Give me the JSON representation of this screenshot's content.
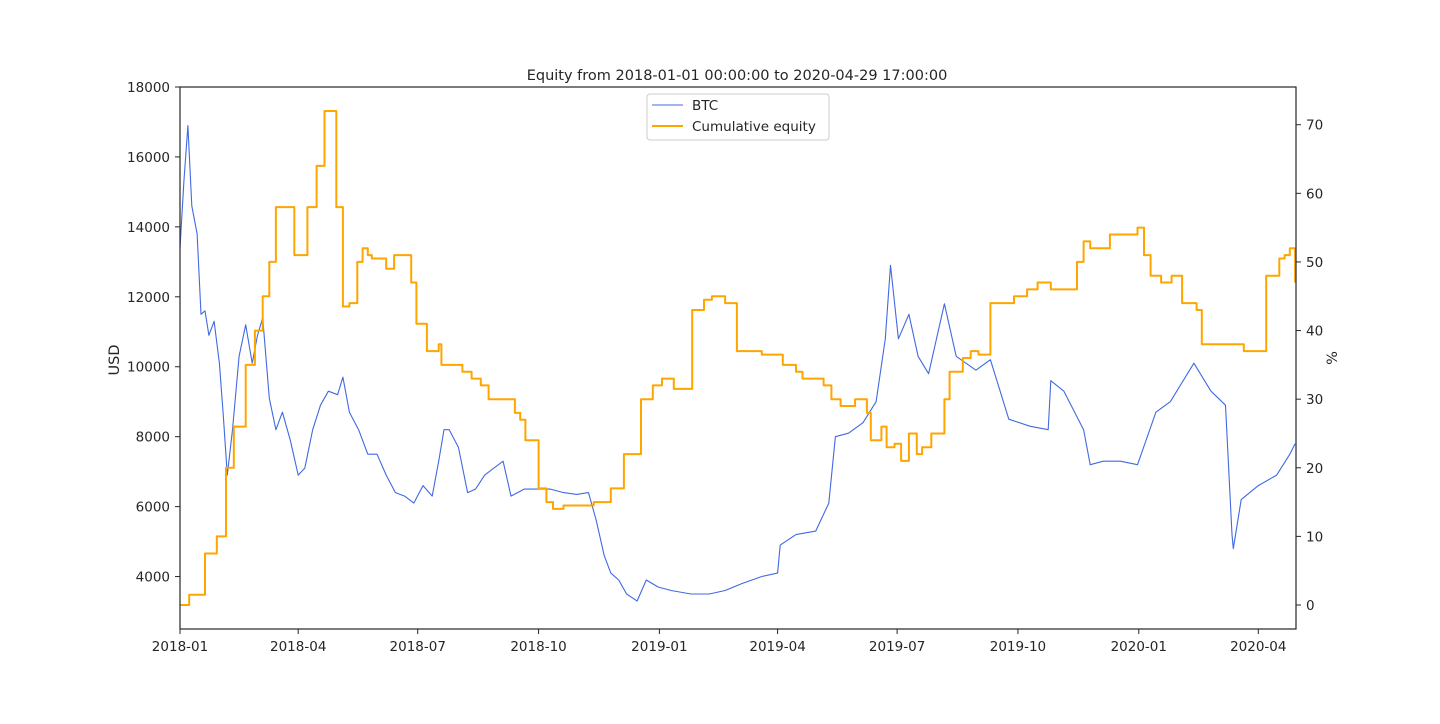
{
  "chart_data": {
    "type": "line",
    "title": "Equity from 2018-01-01 00:00:00 to 2020-04-29 17:00:00",
    "xlabel": "",
    "ylabel": "USD",
    "y2label": "%",
    "xlim": [
      "2018-01-01",
      "2020-04-29"
    ],
    "ylim": [
      2500,
      18000
    ],
    "y2lim": [
      -3.5,
      75.5
    ],
    "x_ticks": [
      "2018-01",
      "2018-04",
      "2018-07",
      "2018-10",
      "2019-01",
      "2019-04",
      "2019-07",
      "2019-10",
      "2020-01",
      "2020-04"
    ],
    "y_ticks": [
      4000,
      6000,
      8000,
      10000,
      12000,
      14000,
      16000,
      18000
    ],
    "y2_ticks": [
      0,
      10,
      20,
      30,
      40,
      50,
      60,
      70
    ],
    "grid": false,
    "legend": {
      "placement": "top-center",
      "entries": [
        "BTC",
        "Cumulative equity"
      ]
    },
    "colors": {
      "btc": "#4169E1",
      "equity": "#FFA500",
      "axis": "#262626"
    },
    "series": [
      {
        "name": "BTC",
        "axis": "left",
        "x": [
          "2018-01-01",
          "2018-01-04",
          "2018-01-07",
          "2018-01-10",
          "2018-01-14",
          "2018-01-17",
          "2018-01-20",
          "2018-01-23",
          "2018-01-27",
          "2018-01-31",
          "2018-02-03",
          "2018-02-06",
          "2018-02-10",
          "2018-02-15",
          "2018-02-20",
          "2018-02-25",
          "2018-03-01",
          "2018-03-05",
          "2018-03-10",
          "2018-03-15",
          "2018-03-20",
          "2018-03-26",
          "2018-04-01",
          "2018-04-06",
          "2018-04-12",
          "2018-04-18",
          "2018-04-24",
          "2018-05-01",
          "2018-05-05",
          "2018-05-10",
          "2018-05-17",
          "2018-05-24",
          "2018-05-31",
          "2018-06-07",
          "2018-06-14",
          "2018-06-21",
          "2018-06-28",
          "2018-07-05",
          "2018-07-12",
          "2018-07-17",
          "2018-07-21",
          "2018-07-25",
          "2018-08-01",
          "2018-08-08",
          "2018-08-14",
          "2018-08-21",
          "2018-08-28",
          "2018-09-04",
          "2018-09-10",
          "2018-09-20",
          "2018-09-30",
          "2018-10-10",
          "2018-10-20",
          "2018-10-30",
          "2018-11-08",
          "2018-11-14",
          "2018-11-20",
          "2018-11-25",
          "2018-12-01",
          "2018-12-07",
          "2018-12-15",
          "2018-12-22",
          "2018-12-31",
          "2019-01-10",
          "2019-01-25",
          "2019-02-08",
          "2019-02-20",
          "2019-03-05",
          "2019-03-20",
          "2019-04-01",
          "2019-04-03",
          "2019-04-15",
          "2019-04-30",
          "2019-05-10",
          "2019-05-15",
          "2019-05-25",
          "2019-06-05",
          "2019-06-15",
          "2019-06-22",
          "2019-06-26",
          "2019-07-02",
          "2019-07-10",
          "2019-07-17",
          "2019-07-25",
          "2019-08-06",
          "2019-08-15",
          "2019-08-30",
          "2019-09-10",
          "2019-09-24",
          "2019-10-10",
          "2019-10-24",
          "2019-10-26",
          "2019-11-05",
          "2019-11-20",
          "2019-11-25",
          "2019-12-05",
          "2019-12-18",
          "2019-12-31",
          "2020-01-14",
          "2020-01-25",
          "2020-02-12",
          "2020-02-25",
          "2020-03-07",
          "2020-03-12",
          "2020-03-13",
          "2020-03-19",
          "2020-04-01",
          "2020-04-15",
          "2020-04-25",
          "2020-04-29"
        ],
        "values": [
          13400,
          15300,
          16900,
          14600,
          13800,
          11500,
          11600,
          10900,
          11300,
          10100,
          8600,
          6900,
          8200,
          10300,
          11200,
          10100,
          10900,
          11400,
          9100,
          8200,
          8700,
          7900,
          6900,
          7100,
          8200,
          8900,
          9300,
          9200,
          9700,
          8700,
          8200,
          7500,
          7500,
          6900,
          6400,
          6300,
          6100,
          6600,
          6300,
          7300,
          8200,
          8200,
          7700,
          6400,
          6500,
          6900,
          7100,
          7300,
          6300,
          6500,
          6500,
          6500,
          6400,
          6350,
          6400,
          5600,
          4600,
          4100,
          3900,
          3500,
          3300,
          3900,
          3700,
          3600,
          3500,
          3500,
          3600,
          3800,
          4000,
          4100,
          4900,
          5200,
          5300,
          6100,
          8000,
          8100,
          8400,
          9000,
          10800,
          12900,
          10800,
          11500,
          10300,
          9800,
          11800,
          10300,
          9900,
          10200,
          8500,
          8300,
          8200,
          9600,
          9300,
          8200,
          7200,
          7300,
          7300,
          7200,
          8700,
          9000,
          10100,
          9300,
          8900,
          5200,
          4800,
          6200,
          6600,
          6900,
          7500,
          7800
        ]
      },
      {
        "name": "Cumulative equity",
        "axis": "right",
        "x": [
          "2018-01-01",
          "2018-01-04",
          "2018-01-08",
          "2018-01-20",
          "2018-01-29",
          "2018-02-05",
          "2018-02-11",
          "2018-02-20",
          "2018-02-27",
          "2018-03-05",
          "2018-03-10",
          "2018-03-15",
          "2018-03-19",
          "2018-03-29",
          "2018-04-08",
          "2018-04-15",
          "2018-04-21",
          "2018-04-30",
          "2018-05-05",
          "2018-05-10",
          "2018-05-16",
          "2018-05-20",
          "2018-05-24",
          "2018-05-27",
          "2018-06-07",
          "2018-06-13",
          "2018-06-20",
          "2018-06-26",
          "2018-06-30",
          "2018-07-08",
          "2018-07-17",
          "2018-07-19",
          "2018-08-04",
          "2018-08-11",
          "2018-08-18",
          "2018-08-24",
          "2018-09-08",
          "2018-09-13",
          "2018-09-17",
          "2018-09-21",
          "2018-10-01",
          "2018-10-07",
          "2018-10-12",
          "2018-10-20",
          "2018-11-12",
          "2018-11-20",
          "2018-11-25",
          "2018-12-05",
          "2018-12-18",
          "2018-12-27",
          "2019-01-03",
          "2019-01-12",
          "2019-01-26",
          "2019-02-04",
          "2019-02-10",
          "2019-02-20",
          "2019-03-01",
          "2019-03-05",
          "2019-03-20",
          "2019-04-05",
          "2019-04-15",
          "2019-04-20",
          "2019-05-06",
          "2019-05-12",
          "2019-05-19",
          "2019-05-24",
          "2019-05-30",
          "2019-06-08",
          "2019-06-11",
          "2019-06-19",
          "2019-06-23",
          "2019-06-29",
          "2019-07-04",
          "2019-07-10",
          "2019-07-16",
          "2019-07-20",
          "2019-07-27",
          "2019-08-06",
          "2019-08-10",
          "2019-08-20",
          "2019-08-26",
          "2019-09-01",
          "2019-09-10",
          "2019-09-28",
          "2019-10-08",
          "2019-10-16",
          "2019-10-26",
          "2019-11-15",
          "2019-11-20",
          "2019-11-25",
          "2019-12-10",
          "2019-12-31",
          "2020-01-05",
          "2020-01-10",
          "2020-01-18",
          "2020-01-26",
          "2020-02-03",
          "2020-02-14",
          "2020-02-18",
          "2020-03-11",
          "2020-03-14",
          "2020-03-21",
          "2020-04-07",
          "2020-04-17",
          "2020-04-21",
          "2020-04-25",
          "2020-04-29"
        ],
        "values": [
          0,
          0,
          1.5,
          7.5,
          10,
          20,
          26,
          35,
          40,
          45,
          50,
          58,
          58,
          51,
          58,
          64,
          72,
          58,
          43.5,
          44,
          50,
          52,
          51,
          50.5,
          49,
          51,
          51,
          47,
          41,
          37,
          38,
          35,
          34,
          33,
          32,
          30,
          30,
          28,
          27,
          24,
          17,
          15,
          14,
          14.5,
          15,
          15,
          17,
          22,
          30,
          32,
          33,
          31.5,
          43,
          44.5,
          45,
          44,
          37,
          37,
          36.5,
          35,
          34,
          33,
          32,
          30,
          29,
          29,
          30,
          28,
          24,
          26,
          23,
          23.5,
          21,
          25,
          22,
          23,
          25,
          30,
          34,
          36,
          37,
          36.5,
          44,
          45,
          46,
          47,
          46,
          50,
          53,
          52,
          54,
          55,
          51,
          48,
          47,
          48,
          44,
          43,
          38,
          38,
          38,
          37,
          48,
          50.5,
          51,
          52,
          47
        ]
      }
    ]
  }
}
